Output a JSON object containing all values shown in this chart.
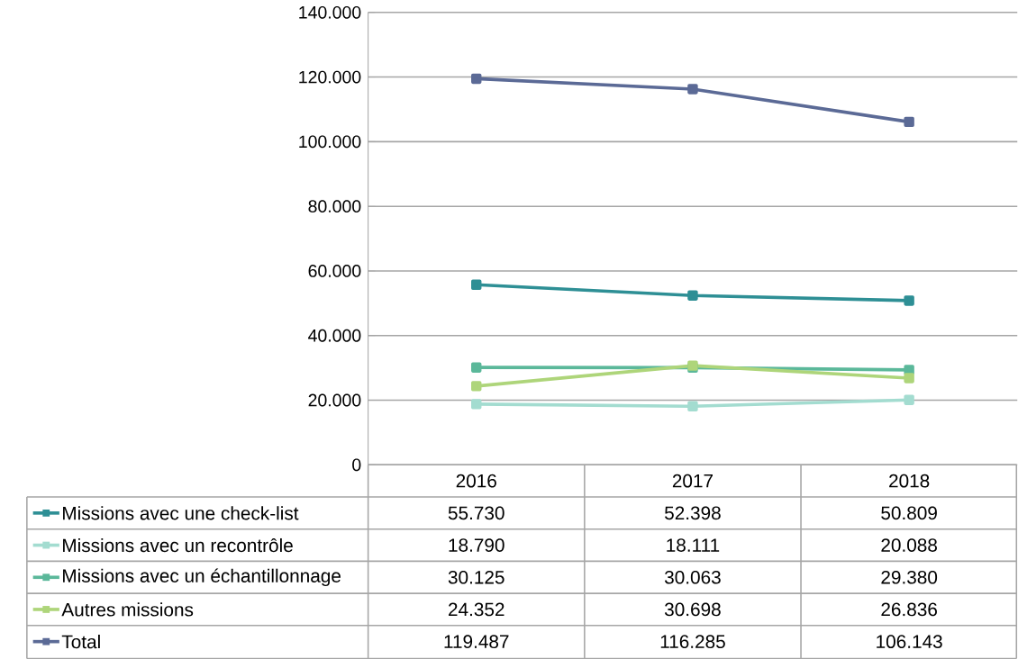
{
  "chart_data": {
    "type": "line",
    "categories": [
      "2016",
      "2017",
      "2018"
    ],
    "series": [
      {
        "name": "Missions avec une check-list",
        "color": "#2e8f95",
        "values": [
          55730,
          52398,
          50809
        ],
        "value_labels": [
          "55.730",
          "52.398",
          "50.809"
        ]
      },
      {
        "name": "Missions avec un recontrôle",
        "color": "#a3dcd0",
        "values": [
          18790,
          18111,
          20088
        ],
        "value_labels": [
          "18.790",
          "18.111",
          "20.088"
        ]
      },
      {
        "name": "Missions avec un échantillonnage",
        "color": "#5bb89a",
        "values": [
          30125,
          30063,
          29380
        ],
        "value_labels": [
          "30.125",
          "30.063",
          "29.380"
        ]
      },
      {
        "name": "Autres missions",
        "color": "#aed57a",
        "values": [
          24352,
          30698,
          26836
        ],
        "value_labels": [
          "24.352",
          "30.698",
          "26.836"
        ]
      },
      {
        "name": "Total",
        "color": "#5b6a96",
        "values": [
          119487,
          116285,
          106143
        ],
        "value_labels": [
          "119.487",
          "116.285",
          "106.143"
        ]
      }
    ],
    "ylim": [
      0,
      140000
    ],
    "yticks": [
      0,
      {
        "value": 20000,
        "label": "20.000"
      },
      {
        "value": 40000,
        "label": "40.000"
      },
      {
        "value": 60000,
        "label": "60.000"
      },
      {
        "value": 80000,
        "label": "80.000"
      },
      {
        "value": 100000,
        "label": "100.000"
      },
      {
        "value": 120000,
        "label": "120.000"
      },
      {
        "value": 140000,
        "label": "140.000"
      }
    ],
    "grid": "y",
    "marker": "square",
    "line_style": "solid",
    "legend": "bottom"
  }
}
